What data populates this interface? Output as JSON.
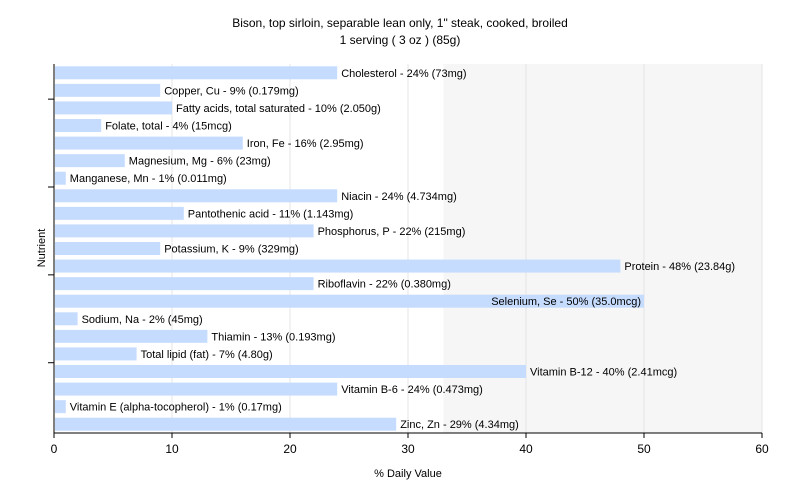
{
  "chart_data": {
    "type": "bar",
    "orientation": "horizontal",
    "title": "Bison, top sirloin, separable lean only, 1\" steak, cooked, broiled",
    "subtitle": "1 serving ( 3 oz ) (85g)",
    "xlabel": "% Daily Value",
    "ylabel": "Nutrient",
    "xlim": [
      0,
      60
    ],
    "xticks": [
      0,
      10,
      20,
      30,
      40,
      50,
      60
    ],
    "grid": true,
    "bar_color": "#c6dcff",
    "plot_background": "#f6f6f6",
    "categories": [
      "Cholesterol",
      "Copper, Cu",
      "Fatty acids, total saturated",
      "Folate, total",
      "Iron, Fe",
      "Magnesium, Mg",
      "Manganese, Mn",
      "Niacin",
      "Pantothenic acid",
      "Phosphorus, P",
      "Potassium, K",
      "Protein",
      "Riboflavin",
      "Selenium, Se",
      "Sodium, Na",
      "Thiamin",
      "Total lipid (fat)",
      "Vitamin B-12",
      "Vitamin B-6",
      "Vitamin E (alpha-tocopherol)",
      "Zinc, Zn"
    ],
    "values": [
      24,
      9,
      10,
      4,
      16,
      6,
      1,
      24,
      11,
      22,
      9,
      48,
      22,
      50,
      2,
      13,
      7,
      40,
      24,
      1,
      29
    ],
    "labels": [
      "Cholesterol - 24% (73mg)",
      "Copper, Cu - 9% (0.179mg)",
      "Fatty acids, total saturated - 10% (2.050g)",
      "Folate, total - 4% (15mcg)",
      "Iron, Fe - 16% (2.95mg)",
      "Magnesium, Mg - 6% (23mg)",
      "Manganese, Mn - 1% (0.011mg)",
      "Niacin - 24% (4.734mg)",
      "Pantothenic acid - 11% (1.143mg)",
      "Phosphorus, P - 22% (215mg)",
      "Potassium, K - 9% (329mg)",
      "Protein - 48% (23.84g)",
      "Riboflavin - 22% (0.380mg)",
      "Selenium, Se - 50% (35.0mcg)",
      "Sodium, Na - 2% (45mg)",
      "Thiamin - 13% (0.193mg)",
      "Total lipid (fat) - 7% (4.80g)",
      "Vitamin B-12 - 40% (2.41mcg)",
      "Vitamin B-6 - 24% (0.473mg)",
      "Vitamin E (alpha-tocopherol) - 1% (0.17mg)",
      "Zinc, Zn - 29% (4.34mg)"
    ]
  }
}
